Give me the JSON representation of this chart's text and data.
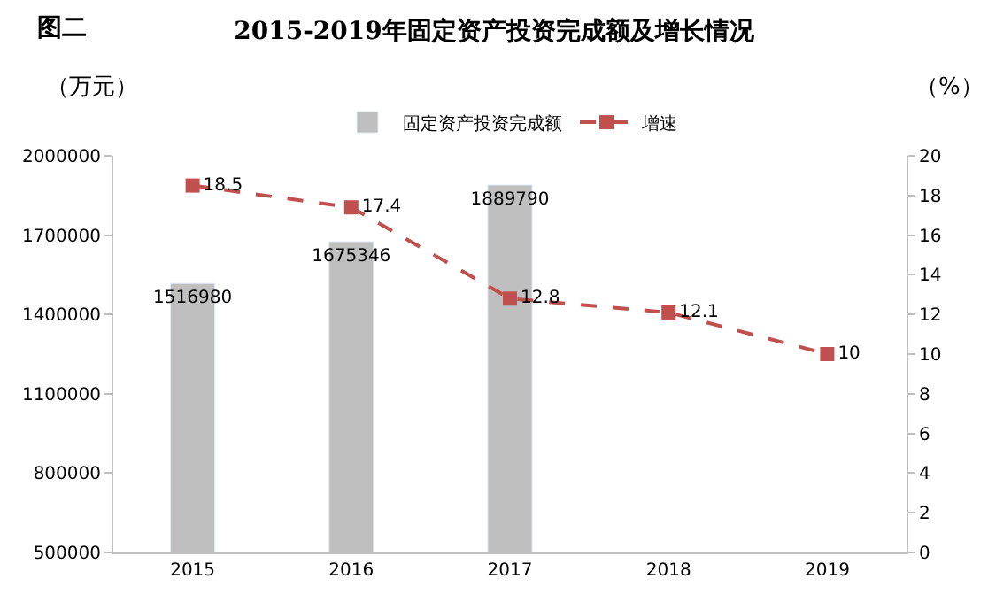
{
  "chart_data": {
    "type": "bar",
    "title": "2015-2019年固定资产投资完成额及增长情况",
    "annotations": [
      "图二"
    ],
    "ylabel": "（万元）",
    "y2label": "（%）",
    "categories": [
      "2015",
      "2016",
      "2017",
      "2018",
      "2019"
    ],
    "series": [
      {
        "name": "固定资产投资完成额",
        "color": "#bfbfbf",
        "values": [
          1516980,
          1675346,
          1889790,
          null,
          null
        ],
        "value_labels": [
          "1516980",
          "1675346",
          "1889790",
          null,
          null
        ]
      },
      {
        "name": "增速",
        "type": "line",
        "axis": "y2",
        "color": "#c0504d",
        "marker": "square",
        "line_style": "dashed",
        "values": [
          18.5,
          17.4,
          12.8,
          12.1,
          10
        ],
        "value_labels": [
          "18.5",
          "17.4",
          "12.8",
          "12.1",
          "10"
        ]
      }
    ],
    "ylim": [
      500000,
      2000000
    ],
    "yticks": [
      500000,
      800000,
      1100000,
      1400000,
      1700000,
      2000000
    ],
    "y2lim": [
      0,
      20
    ],
    "y2ticks": [
      0,
      2,
      4,
      6,
      8,
      10,
      12,
      14,
      16,
      18,
      20
    ],
    "legend": "top"
  }
}
